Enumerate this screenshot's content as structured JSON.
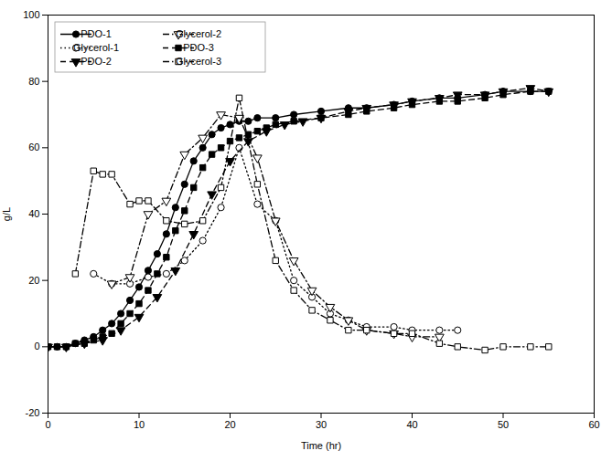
{
  "chart_data": {
    "type": "line",
    "xlabel": "Time (hr)",
    "ylabel": "g/L",
    "xlim": [
      0,
      60
    ],
    "ylim": [
      -20,
      100
    ],
    "xticks": [
      0,
      10,
      20,
      30,
      40,
      50,
      60
    ],
    "yticks": [
      -20,
      0,
      20,
      40,
      60,
      80,
      100
    ],
    "legend": "upper left",
    "series": [
      {
        "name": "PDO-1",
        "color": "#000000",
        "line_style": "solid",
        "marker": "circle",
        "x": [
          0,
          1,
          2,
          3,
          4,
          5,
          6,
          7,
          8,
          9,
          10,
          11,
          12,
          13,
          14,
          15,
          16,
          17,
          18,
          19,
          20,
          21,
          22,
          23,
          25,
          27,
          30,
          33,
          35,
          38,
          40,
          43,
          45,
          48,
          50,
          53,
          55
        ],
        "values": [
          0,
          0,
          0,
          1,
          2,
          3,
          5,
          7,
          10,
          14,
          18,
          23,
          28,
          34,
          42,
          49,
          56,
          60,
          64,
          66,
          67,
          68,
          68,
          69,
          69,
          70,
          71,
          72,
          72,
          73,
          74,
          75,
          75,
          76,
          77,
          77,
          77
        ]
      },
      {
        "name": "Glycerol-1",
        "color": "#000000",
        "line_style": "dotted",
        "marker": "circle-open",
        "x": [
          5,
          7,
          9,
          11,
          13,
          15,
          17,
          19,
          21,
          23,
          25,
          27,
          29,
          31,
          33,
          35,
          38,
          40,
          43,
          45
        ],
        "values": [
          22,
          19,
          19,
          21,
          22,
          26,
          32,
          42,
          60,
          43,
          38,
          20,
          15,
          10,
          8,
          6,
          6,
          5,
          5,
          5
        ]
      },
      {
        "name": "PDO-2",
        "color": "#000000",
        "line_style": "dashed",
        "marker": "triangle-down",
        "x": [
          0,
          2,
          4,
          6,
          8,
          10,
          12,
          14,
          16,
          18,
          20,
          22,
          24,
          26,
          28,
          30,
          33,
          35,
          38,
          40,
          43,
          45,
          48,
          50,
          53,
          55
        ],
        "values": [
          0,
          0,
          1,
          2,
          5,
          9,
          15,
          23,
          34,
          46,
          56,
          62,
          65,
          67,
          68,
          69,
          71,
          72,
          73,
          74,
          75,
          76,
          76,
          77,
          78,
          77
        ]
      },
      {
        "name": "Glycerol-2",
        "color": "#000000",
        "line_style": "dashdot",
        "marker": "triangle-down-open",
        "x": [
          7,
          9,
          11,
          13,
          15,
          17,
          19,
          21,
          23,
          25,
          27,
          29,
          31,
          33,
          35,
          38,
          40,
          43
        ],
        "values": [
          19,
          21,
          40,
          44,
          58,
          63,
          70,
          69,
          57,
          38,
          26,
          17,
          12,
          8,
          5,
          4,
          3,
          3
        ]
      },
      {
        "name": "PDO-3",
        "color": "#000000",
        "line_style": "dashed",
        "marker": "square",
        "x": [
          0,
          1,
          2,
          3,
          4,
          5,
          6,
          7,
          8,
          9,
          10,
          11,
          12,
          13,
          14,
          15,
          16,
          17,
          18,
          19,
          20,
          21,
          22,
          23,
          24,
          25,
          27,
          30,
          33,
          35,
          38,
          40,
          43,
          45,
          48,
          50,
          53,
          55
        ],
        "values": [
          0,
          0,
          0,
          1,
          1,
          2,
          3,
          4,
          7,
          10,
          13,
          17,
          22,
          27,
          35,
          41,
          48,
          54,
          58,
          60,
          62,
          63,
          64,
          65,
          66,
          67,
          68,
          69,
          70,
          71,
          72,
          73,
          74,
          74,
          75,
          76,
          77,
          77
        ]
      },
      {
        "name": "Glycerol-3",
        "color": "#000000",
        "line_style": "dashdot",
        "marker": "square-open",
        "x": [
          3,
          5,
          6,
          7,
          9,
          10,
          11,
          13,
          15,
          17,
          19,
          21,
          23,
          25,
          27,
          29,
          31,
          33,
          35,
          38,
          40,
          43,
          45,
          48,
          50,
          53,
          55
        ],
        "values": [
          22,
          53,
          52,
          52,
          43,
          44,
          44,
          38,
          37,
          38,
          48,
          75,
          49,
          26,
          17,
          11,
          8,
          5,
          5,
          4,
          4,
          1,
          0,
          -1,
          0,
          0,
          0
        ]
      }
    ]
  }
}
